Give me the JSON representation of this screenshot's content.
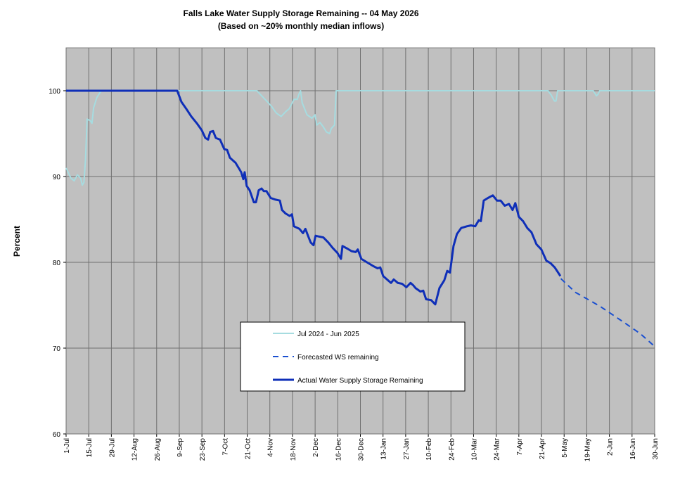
{
  "chart_data": {
    "type": "line",
    "title": "Falls Lake Water Supply Storage Remaining -- 04 May 2026",
    "subtitle": "(Based on ~20% monthly median inflows)",
    "y_label": "Percent",
    "xlim": [
      0,
      364
    ],
    "xticks": [
      {
        "value": 0,
        "label": "1-Jul"
      },
      {
        "value": 14,
        "label": "15-Jul"
      },
      {
        "value": 28,
        "label": "29-Jul"
      },
      {
        "value": 42,
        "label": "12-Aug"
      },
      {
        "value": 56,
        "label": "26-Aug"
      },
      {
        "value": 70,
        "label": "9-Sep"
      },
      {
        "value": 84,
        "label": "23-Sep"
      },
      {
        "value": 98,
        "label": "7-Oct"
      },
      {
        "value": 112,
        "label": "21-Oct"
      },
      {
        "value": 126,
        "label": "4-Nov"
      },
      {
        "value": 140,
        "label": "18-Nov"
      },
      {
        "value": 154,
        "label": "2-Dec"
      },
      {
        "value": 168,
        "label": "16-Dec"
      },
      {
        "value": 182,
        "label": "30-Dec"
      },
      {
        "value": 196,
        "label": "13-Jan"
      },
      {
        "value": 210,
        "label": "27-Jan"
      },
      {
        "value": 224,
        "label": "10-Feb"
      },
      {
        "value": 238,
        "label": "24-Feb"
      },
      {
        "value": 252,
        "label": "10-Mar"
      },
      {
        "value": 266,
        "label": "24-Mar"
      },
      {
        "value": 280,
        "label": "7-Apr"
      },
      {
        "value": 294,
        "label": "21-Apr"
      },
      {
        "value": 308,
        "label": "5-May"
      },
      {
        "value": 322,
        "label": "19-May"
      },
      {
        "value": 336,
        "label": "2-Jun"
      },
      {
        "value": 350,
        "label": "16-Jun"
      },
      {
        "value": 364,
        "label": "30-Jun"
      }
    ],
    "ylim": [
      60,
      105
    ],
    "yticks": [
      60,
      70,
      80,
      90,
      100
    ],
    "grid": true,
    "background": "#c0c0c0",
    "series": [
      {
        "name": "Jul 2024 - Jun 2025",
        "color": "#a6dce0",
        "width": 2,
        "dash": false,
        "x": [
          0,
          3,
          5,
          7,
          9,
          10,
          11,
          12,
          13,
          15,
          16,
          17,
          19,
          21,
          22,
          118,
          120,
          124,
          127,
          130,
          133,
          136,
          138,
          141,
          143,
          144,
          145,
          146,
          149,
          152,
          154,
          155,
          157,
          159,
          161,
          163,
          164,
          166,
          167,
          298,
          300,
          302,
          303,
          304,
          326,
          328,
          329,
          330,
          364
        ],
        "values": [
          91,
          89.8,
          89.5,
          90.2,
          89.8,
          89,
          89.3,
          92,
          96.7,
          96.5,
          96.2,
          98,
          99.2,
          99.8,
          100,
          100,
          99.6,
          98.8,
          98.2,
          97.4,
          97,
          97.6,
          97.9,
          99,
          99,
          99.6,
          100,
          98.6,
          97.2,
          96.8,
          97.2,
          96,
          96.3,
          95.8,
          95.2,
          95,
          95.6,
          96,
          100,
          100,
          99.5,
          98.8,
          98.8,
          100,
          100,
          99.4,
          99.6,
          100,
          100
        ]
      },
      {
        "name": "Forecasted WS remaining",
        "color": "#1a4fd0",
        "width": 2,
        "dash": true,
        "x": [
          306,
          315,
          330,
          345,
          355,
          364
        ],
        "values": [
          78.1,
          76.5,
          74.9,
          73,
          71.7,
          70.2
        ]
      },
      {
        "name": "Actual Water Supply Storage Remaining",
        "color": "#0f2fb8",
        "width": 3,
        "dash": false,
        "x": [
          0,
          68.7,
          71.3,
          74.3,
          77.4,
          80.9,
          83.9,
          86.1,
          87.8,
          89.1,
          90.9,
          92.6,
          95.2,
          97.8,
          99.6,
          101.3,
          104.8,
          108.3,
          109.6,
          110.4,
          111.7,
          113.5,
          116.1,
          117.4,
          119.1,
          120.9,
          122.2,
          123.9,
          126.5,
          129.6,
          132.2,
          133.5,
          135.7,
          138.3,
          139.7,
          140.9,
          144.3,
          146.5,
          148,
          149.6,
          151.3,
          153,
          154.3,
          156.5,
          159.1,
          162.2,
          164.8,
          167.8,
          170,
          170.9,
          173.9,
          176.5,
          179.1,
          180.4,
          182.6,
          186.1,
          189.6,
          192.6,
          194.3,
          196.1,
          199.1,
          200.9,
          202.6,
          205.2,
          207.8,
          210.4,
          213,
          214.8,
          216.1,
          219.1,
          220.9,
          222.6,
          225.7,
          228.3,
          230.9,
          233.9,
          235.7,
          237.4,
          239.6,
          241.7,
          244.3,
          247.8,
          250.4,
          253,
          255.2,
          256.5,
          258.3,
          260.9,
          263.9,
          266.5,
          268.7,
          271.3,
          273.9,
          276.1,
          277.8,
          280,
          282.6,
          285.2,
          287.8,
          290.9,
          293.9,
          297,
          299.6,
          302.2,
          304.3,
          305.7
        ],
        "values": [
          100,
          100,
          98.7,
          97.9,
          97,
          96.2,
          95.4,
          94.5,
          94.3,
          95.2,
          95.3,
          94.5,
          94.3,
          93.2,
          93.1,
          92.2,
          91.6,
          90.5,
          89.7,
          90.5,
          88.9,
          88.4,
          87,
          87,
          88.4,
          88.6,
          88.3,
          88.3,
          87.5,
          87.3,
          87.2,
          86.1,
          85.7,
          85.4,
          85.6,
          84.2,
          83.9,
          83.4,
          83.9,
          83.1,
          82.3,
          82,
          83.1,
          83,
          82.9,
          82.3,
          81.7,
          81.1,
          80.4,
          81.9,
          81.6,
          81.3,
          81.2,
          81.5,
          80.4,
          80,
          79.6,
          79.3,
          79.4,
          78.4,
          77.9,
          77.6,
          78,
          77.6,
          77.5,
          77.1,
          77.6,
          77.3,
          77,
          76.6,
          76.7,
          75.7,
          75.6,
          75.1,
          77,
          77.9,
          79,
          78.8,
          81.9,
          83.3,
          84,
          84.2,
          84.3,
          84.2,
          84.9,
          84.8,
          87.2,
          87.5,
          87.8,
          87.2,
          87.2,
          86.6,
          86.8,
          86.1,
          86.9,
          85.3,
          84.8,
          84,
          83.5,
          82.1,
          81.5,
          80.2,
          79.9,
          79.4,
          78.8,
          78.4
        ]
      }
    ]
  }
}
